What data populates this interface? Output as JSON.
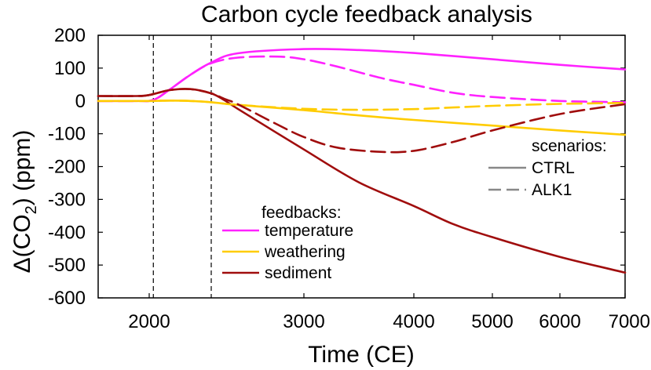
{
  "chart_data": {
    "type": "line",
    "title": "Carbon cycle feedback analysis",
    "xlabel": "Time (CE)",
    "ylabel_prefix": "Δ(CO",
    "ylabel_sub": "2",
    "ylabel_suffix": ") (ppm)",
    "x_scale": "nonlinear",
    "xlim": [
      1600,
      7000
    ],
    "ylim": [
      -600,
      200
    ],
    "x_ticks": [
      2000,
      3000,
      4000,
      5000,
      6000,
      7000
    ],
    "y_ticks": [
      200,
      100,
      0,
      -100,
      -200,
      -300,
      -400,
      -500,
      -600
    ],
    "vertical_markers": [
      2020,
      2300
    ],
    "feedbacks_title": "feedbacks:",
    "scenarios_title": "scenarios:",
    "series": [
      {
        "name": "temperature",
        "scenario": "CTRL",
        "color": "#ff22ff",
        "dashed": false,
        "x": [
          1600,
          1900,
          2020,
          2100,
          2200,
          2300,
          2500,
          3000,
          3500,
          4000,
          5000,
          6000,
          7000
        ],
        "y": [
          0,
          0,
          3,
          35,
          80,
          117,
          145,
          158,
          155,
          146,
          127,
          110,
          96
        ]
      },
      {
        "name": "temperature",
        "scenario": "ALK1",
        "color": "#ff22ff",
        "dashed": true,
        "x": [
          1600,
          1900,
          2020,
          2100,
          2200,
          2300,
          2500,
          2800,
          3000,
          3300,
          3700,
          4000,
          4500,
          5000,
          6000,
          7000
        ],
        "y": [
          0,
          0,
          3,
          35,
          80,
          115,
          132,
          135,
          127,
          105,
          70,
          49,
          25,
          12,
          0,
          -4
        ]
      },
      {
        "name": "weathering",
        "scenario": "CTRL",
        "color": "#ffcc00",
        "dashed": false,
        "x": [
          1600,
          2000,
          2100,
          2200,
          2300,
          2500,
          3000,
          3500,
          4000,
          5000,
          6000,
          7000
        ],
        "y": [
          0,
          0,
          1,
          0,
          -4,
          -12,
          -28,
          -44,
          -58,
          -75,
          -90,
          -103
        ]
      },
      {
        "name": "weathering",
        "scenario": "ALK1",
        "color": "#ffcc00",
        "dashed": true,
        "x": [
          1600,
          2000,
          2100,
          2200,
          2300,
          2500,
          3000,
          3500,
          4000,
          4500,
          5000,
          6000,
          7000
        ],
        "y": [
          0,
          0,
          1,
          0,
          -4,
          -12,
          -24,
          -27,
          -25,
          -20,
          -15,
          -9,
          -6
        ]
      },
      {
        "name": "sediment",
        "scenario": "CTRL",
        "color": "#a00d0d",
        "dashed": false,
        "x": [
          1600,
          1900,
          2000,
          2100,
          2200,
          2300,
          2400,
          2500,
          3000,
          3500,
          4000,
          4500,
          5000,
          6000,
          7000
        ],
        "y": [
          15,
          15,
          18,
          33,
          36,
          23,
          2,
          -24,
          -148,
          -248,
          -320,
          -375,
          -415,
          -475,
          -523
        ]
      },
      {
        "name": "sediment",
        "scenario": "ALK1",
        "color": "#a00d0d",
        "dashed": true,
        "x": [
          1600,
          1900,
          2000,
          2100,
          2200,
          2300,
          2400,
          2500,
          2800,
          3000,
          3300,
          3700,
          4000,
          4500,
          5000,
          6000,
          7000
        ],
        "y": [
          15,
          15,
          18,
          33,
          36,
          23,
          6,
          -10,
          -72,
          -110,
          -142,
          -155,
          -152,
          -125,
          -90,
          -40,
          -10
        ]
      }
    ],
    "legend_feedbacks": [
      {
        "label": "temperature",
        "color": "#ff22ff"
      },
      {
        "label": "weathering",
        "color": "#ffcc00"
      },
      {
        "label": "sediment",
        "color": "#a00d0d"
      }
    ],
    "legend_scenarios": [
      {
        "label": "CTRL",
        "color": "#888888",
        "dashed": false
      },
      {
        "label": "ALK1",
        "color": "#888888",
        "dashed": true
      }
    ]
  }
}
